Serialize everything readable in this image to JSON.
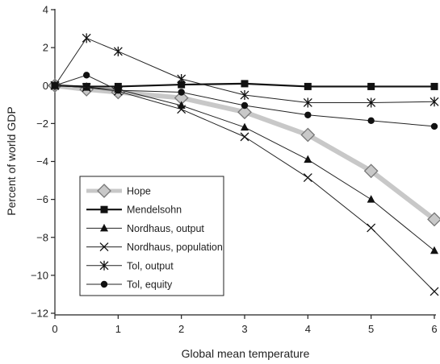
{
  "chart_data": {
    "type": "line",
    "xlabel": "Global mean temperature",
    "ylabel": "Percent of world GDP",
    "xlim": [
      0,
      6
    ],
    "ylim": [
      -12,
      4
    ],
    "x_ticks": [
      "0",
      "1",
      "2",
      "3",
      "4",
      "5",
      "6"
    ],
    "y_ticks": [
      "4",
      "2",
      "0",
      "−2",
      "−4",
      "−6",
      "−8",
      "−10",
      "−12"
    ],
    "grid": false,
    "legend_position": "bottom-left",
    "series": [
      {
        "name": "Hope",
        "marker": "diamond",
        "color": "#c8c8c8",
        "x": [
          0,
          0.5,
          1,
          2,
          3,
          4,
          5,
          6
        ],
        "y": [
          0,
          -0.2,
          -0.35,
          -0.65,
          -1.4,
          -2.6,
          -4.5,
          -7.05
        ]
      },
      {
        "name": "Mendelsohn",
        "marker": "square",
        "color": "#111111",
        "x": [
          0,
          0.5,
          1,
          2,
          3,
          4,
          5,
          6
        ],
        "y": [
          0,
          -0.05,
          -0.05,
          0.05,
          0.1,
          -0.05,
          -0.05,
          -0.05
        ]
      },
      {
        "name": "Nordhaus, output",
        "marker": "triangle",
        "color": "#111111",
        "x": [
          0,
          0.5,
          1,
          2,
          3,
          4,
          5,
          6
        ],
        "y": [
          0,
          -0.1,
          -0.2,
          -1.05,
          -2.2,
          -3.9,
          -6.0,
          -8.7
        ]
      },
      {
        "name": "Nordhaus, population",
        "marker": "x",
        "color": "#111111",
        "x": [
          0,
          0.5,
          1,
          2,
          3,
          4,
          5,
          6
        ],
        "y": [
          0,
          -0.1,
          -0.3,
          -1.25,
          -2.7,
          -4.85,
          -7.5,
          -10.85
        ]
      },
      {
        "name": "Tol, output",
        "marker": "asterisk",
        "color": "#111111",
        "x": [
          0,
          0.5,
          1,
          2,
          3,
          4,
          5,
          6
        ],
        "y": [
          0,
          2.5,
          1.8,
          0.35,
          -0.5,
          -0.9,
          -0.9,
          -0.85
        ]
      },
      {
        "name": "Tol, equity",
        "marker": "circle",
        "color": "#111111",
        "x": [
          0,
          0.5,
          1,
          2,
          3,
          4,
          5,
          6
        ],
        "y": [
          0,
          0.55,
          -0.25,
          -0.35,
          -1.05,
          -1.55,
          -1.85,
          -2.15
        ]
      }
    ]
  }
}
